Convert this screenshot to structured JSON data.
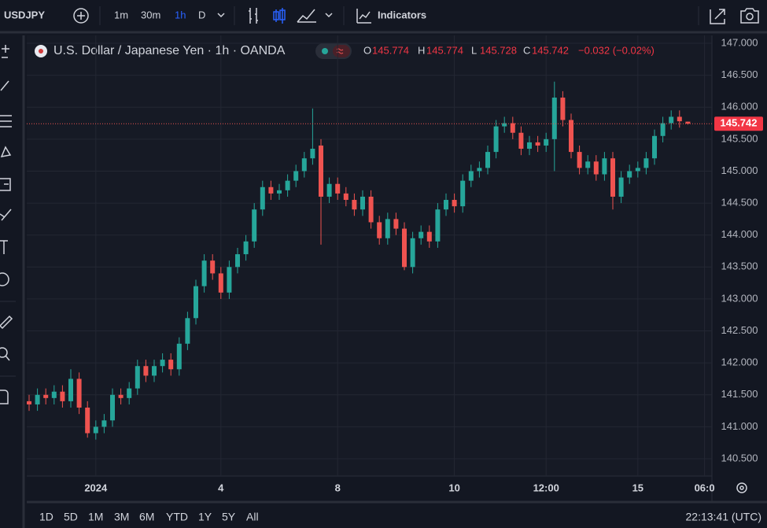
{
  "ui": {
    "symbol": "USDJPY",
    "intervals": [
      "1m",
      "30m",
      "1h",
      "D"
    ],
    "indicators": "Indicators",
    "ranges": [
      "1D",
      "5D",
      "1M",
      "3M",
      "6M",
      "YTD",
      "1Y",
      "5Y",
      "All"
    ],
    "clock": "22:13:41 (UTC)"
  },
  "chart_data": {
    "type": "candlestick",
    "title": "U.S. Dollar / Japanese Yen · 1h · OANDA",
    "ohlc_letters": [
      "O",
      "H",
      "L",
      "C"
    ],
    "change": "−0.032 (−0.02%)",
    "up_color": "#26a69a",
    "down_color": "#ef5350",
    "grid": true,
    "categories": [
      null,
      null,
      null,
      null,
      null,
      null,
      null,
      null,
      "2024",
      null,
      null,
      null,
      null,
      null,
      null,
      null,
      null,
      null,
      null,
      null,
      null,
      null,
      null,
      "4",
      null,
      null,
      null,
      null,
      null,
      null,
      null,
      null,
      null,
      null,
      null,
      null,
      null,
      "8",
      null,
      null,
      null,
      null,
      null,
      null,
      null,
      null,
      null,
      null,
      null,
      null,
      null,
      "10",
      null,
      null,
      null,
      null,
      null,
      null,
      null,
      null,
      null,
      null,
      "12:00",
      null,
      null,
      null,
      null,
      null,
      null,
      null,
      null,
      null,
      null,
      "15",
      null,
      null,
      null,
      null,
      null,
      null,
      null,
      "06:0",
      null,
      null
    ],
    "open": [
      141.4,
      141.35,
      141.5,
      141.45,
      141.55,
      141.4,
      141.75,
      141.3,
      140.9,
      141.0,
      141.1,
      141.5,
      141.45,
      141.6,
      141.95,
      141.8,
      141.95,
      142.05,
      141.9,
      142.3,
      142.7,
      143.2,
      143.6,
      143.4,
      143.1,
      143.5,
      143.7,
      143.9,
      144.4,
      144.75,
      144.65,
      144.7,
      144.85,
      145.0,
      145.2,
      145.4,
      144.6,
      144.8,
      144.65,
      144.55,
      144.4,
      144.6,
      144.2,
      143.95,
      144.25,
      144.1,
      143.5,
      143.95,
      144.05,
      143.9,
      144.4,
      144.55,
      144.45,
      144.85,
      145.0,
      145.05,
      145.3,
      145.7,
      145.75,
      145.6,
      145.35,
      145.45,
      145.4,
      145.5,
      146.15,
      145.8,
      145.3,
      145.05,
      145.15,
      144.95,
      145.2,
      144.6,
      144.9,
      145.0,
      145.05,
      145.2,
      145.55,
      145.75,
      145.85,
      145.774,
      null,
      null,
      null,
      null
    ],
    "high": [
      141.5,
      141.6,
      141.6,
      141.65,
      141.65,
      141.9,
      141.85,
      141.4,
      141.1,
      141.2,
      141.6,
      141.6,
      141.7,
      142.05,
      142.05,
      142.05,
      142.15,
      142.15,
      142.4,
      142.8,
      143.3,
      143.7,
      143.7,
      143.5,
      143.6,
      143.8,
      144.0,
      144.5,
      144.85,
      144.85,
      144.8,
      144.95,
      145.1,
      145.3,
      145.98,
      145.5,
      144.9,
      144.9,
      144.75,
      144.65,
      144.7,
      144.7,
      144.3,
      144.35,
      144.35,
      144.2,
      144.05,
      144.15,
      144.15,
      144.5,
      144.65,
      144.65,
      144.95,
      145.1,
      145.15,
      145.4,
      145.8,
      145.85,
      145.85,
      145.7,
      145.55,
      145.55,
      145.6,
      146.4,
      146.25,
      145.9,
      145.4,
      145.25,
      145.25,
      145.3,
      145.3,
      145.0,
      145.1,
      145.15,
      145.3,
      145.65,
      145.85,
      145.95,
      145.95,
      145.774,
      null,
      null,
      null,
      null
    ],
    "low": [
      141.25,
      141.25,
      141.35,
      141.35,
      141.3,
      141.3,
      141.2,
      140.83,
      140.8,
      140.9,
      141.0,
      141.35,
      141.35,
      141.5,
      141.7,
      141.7,
      141.85,
      141.8,
      141.8,
      142.2,
      142.6,
      143.1,
      143.3,
      143.0,
      143.0,
      143.4,
      143.6,
      143.8,
      144.3,
      144.55,
      144.55,
      144.6,
      144.75,
      144.9,
      145.1,
      143.85,
      144.5,
      144.55,
      144.45,
      144.3,
      144.3,
      144.1,
      143.85,
      143.85,
      144.0,
      143.45,
      143.4,
      143.85,
      143.8,
      143.8,
      144.3,
      144.35,
      144.35,
      144.75,
      144.9,
      144.95,
      145.2,
      145.6,
      145.5,
      145.25,
      145.25,
      145.3,
      145.3,
      145.0,
      145.7,
      145.2,
      144.95,
      144.95,
      144.85,
      144.85,
      144.4,
      144.5,
      144.8,
      144.9,
      144.95,
      145.1,
      145.45,
      145.65,
      145.68,
      145.728,
      null,
      null,
      null,
      null
    ],
    "close": [
      141.35,
      141.5,
      141.45,
      141.55,
      141.4,
      141.75,
      141.3,
      140.9,
      141.0,
      141.1,
      141.5,
      141.45,
      141.6,
      141.95,
      141.8,
      141.95,
      142.05,
      141.9,
      142.3,
      142.7,
      143.2,
      143.6,
      143.4,
      143.1,
      143.5,
      143.7,
      143.9,
      144.4,
      144.75,
      144.65,
      144.7,
      144.85,
      145.0,
      145.2,
      145.35,
      144.6,
      144.8,
      144.65,
      144.55,
      144.4,
      144.6,
      144.2,
      143.95,
      144.25,
      144.1,
      143.5,
      143.95,
      144.05,
      143.9,
      144.4,
      144.55,
      144.45,
      144.85,
      145.0,
      145.05,
      145.3,
      145.7,
      145.75,
      145.6,
      145.35,
      145.45,
      145.4,
      145.5,
      146.15,
      145.8,
      145.3,
      145.05,
      145.15,
      144.95,
      145.2,
      144.6,
      144.9,
      145.0,
      145.05,
      145.2,
      145.55,
      145.75,
      145.85,
      145.78,
      145.742,
      null,
      null,
      null,
      null
    ],
    "ylim": [
      140.5,
      147.0
    ],
    "yticks": [
      {
        "value": 140.5,
        "label": "140.500"
      },
      {
        "value": 141.0,
        "label": "141.000"
      },
      {
        "value": 141.5,
        "label": "141.500"
      },
      {
        "value": 142.0,
        "label": "142.000"
      },
      {
        "value": 142.5,
        "label": "142.500"
      },
      {
        "value": 143.0,
        "label": "143.000"
      },
      {
        "value": 143.5,
        "label": "143.500"
      },
      {
        "value": 144.0,
        "label": "144.000"
      },
      {
        "value": 144.5,
        "label": "144.500"
      },
      {
        "value": 145.0,
        "label": "145.000"
      },
      {
        "value": 145.5,
        "label": "145.500"
      },
      {
        "value": 146.0,
        "label": "146.000"
      },
      {
        "value": 146.5,
        "label": "146.500"
      },
      {
        "value": 147.0,
        "label": "147.000"
      }
    ]
  }
}
